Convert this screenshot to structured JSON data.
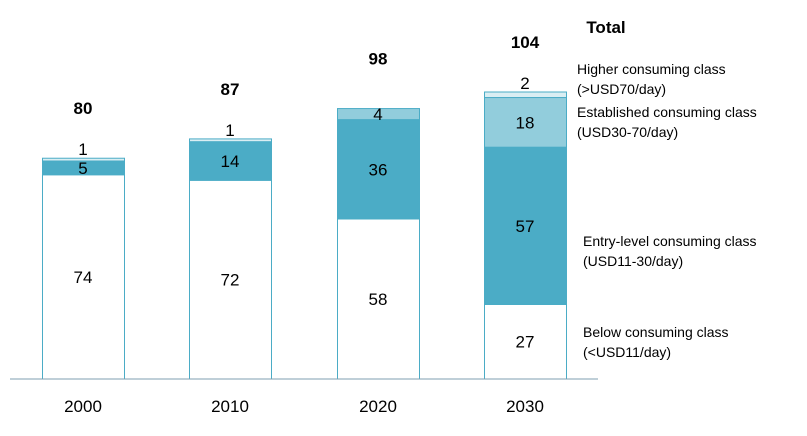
{
  "chart_data": {
    "type": "bar",
    "stacked": true,
    "categories": [
      "2000",
      "2010",
      "2020",
      "2030"
    ],
    "series": [
      {
        "name": "Below consuming class",
        "sublabel": "(<USD11/day)",
        "values": [
          74,
          72,
          58,
          27
        ],
        "color": "#ffffff",
        "border": "#4bacc6"
      },
      {
        "name": "Entry-level consuming class",
        "sublabel": "(USD11-30/day)",
        "values": [
          5,
          14,
          36,
          57
        ],
        "color": "#4bacc6"
      },
      {
        "name": "Established consuming class",
        "sublabel": "(USD30-70/day)",
        "values": [
          0,
          0,
          4,
          18
        ],
        "color": "#92cddc"
      },
      {
        "name": "Higher consuming class",
        "sublabel": "(>USD70/day)",
        "values": [
          1,
          1,
          0,
          2
        ],
        "color": "#daeef3"
      }
    ],
    "segment_labels": [
      [
        "74",
        "5",
        "",
        "1"
      ],
      [
        "72",
        "14",
        "",
        "1"
      ],
      [
        "58",
        "36",
        "4",
        ""
      ],
      [
        "27",
        "57",
        "18",
        "2"
      ]
    ],
    "totals_header": "Total",
    "totals": [
      80,
      87,
      98,
      104
    ],
    "ylim": [
      0,
      104
    ],
    "grid": false,
    "legend_placement": "right"
  }
}
